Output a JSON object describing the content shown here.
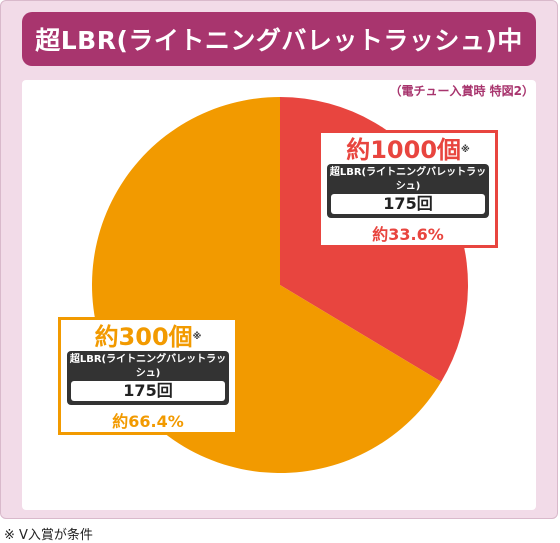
{
  "title": "超LBR(ライトニングバレットラッシュ)中",
  "subtitle": "（電チュー入賞時 特図2）",
  "footnote": "※ V入賞が条件",
  "colors": {
    "red": "#e8453f",
    "orange": "#f29a00",
    "title_bg": "#a8356e"
  },
  "chart_data": {
    "type": "pie",
    "title": "超LBR(ライトニングバレットラッシュ)中",
    "slices": [
      {
        "label": "約1000個",
        "mark": "※",
        "mode": "超LBR(ライトニングバレットラッシュ)",
        "count": "175回",
        "percent_label": "約33.6%",
        "value": 33.6,
        "color": "#e8453f"
      },
      {
        "label": "約300個",
        "mark": "※",
        "mode": "超LBR(ライトニングバレットラッシュ)",
        "count": "175回",
        "percent_label": "約66.4%",
        "value": 66.4,
        "color": "#f29a00"
      }
    ]
  }
}
